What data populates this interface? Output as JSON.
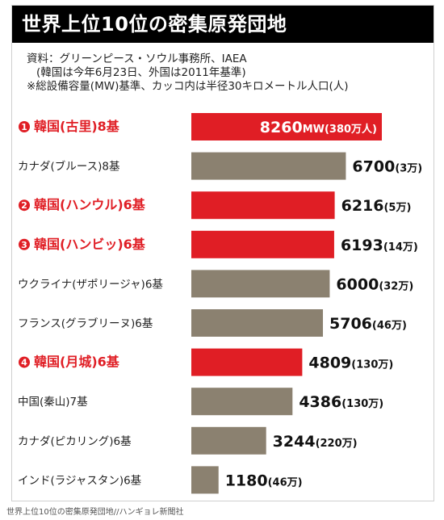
{
  "title": "世界上位10位の密集原発団地",
  "notes": [
    "資料：グリーンピース・ソウル事務所、IAEA",
    "(韓国は今年6月23日、外国は2011年基準)",
    "※総設備容量(MW)基準、カッコ内は半径30キロメートル人口(人)"
  ],
  "caption": "世界上位10位の密集原発団地//ハンギョレ新聞社",
  "colors": {
    "korea": "#e01e25",
    "other": "#8b8170",
    "korea_label": "#e01e25",
    "other_label": "#222222"
  },
  "chart_data": {
    "type": "bar",
    "orientation": "horizontal",
    "unit": "MW",
    "categories": [
      "韓国(古里)8基",
      "カナダ(ブルース)8基",
      "韓国(ハンウル)6基",
      "韓国(ハンビッ)6基",
      "ウクライナ(ザポリージャ)6基",
      "フランス(グラブリーヌ)6基",
      "韓国(月城)6基",
      "中国(秦山)7基",
      "カナダ(ピカリング)6基",
      "インド(ラジャスタン)6基"
    ],
    "ranks": [
      "1",
      "",
      "2",
      "3",
      "",
      "",
      "4",
      "",
      "",
      ""
    ],
    "values": [
      8260,
      6700,
      6216,
      6193,
      6000,
      5706,
      4809,
      4386,
      3244,
      1180
    ],
    "value_labels": [
      "8260",
      "6700",
      "6216",
      "6193",
      "6000",
      "5706",
      "4809",
      "4386",
      "3244",
      "1180"
    ],
    "populations": [
      "(380万人)",
      "(3万)",
      "(5万)",
      "(14万)",
      "(32万)",
      "(46万)",
      "(130万)",
      "(130万)",
      "(220万)",
      "(46万)"
    ],
    "korea": [
      true,
      false,
      true,
      true,
      false,
      false,
      true,
      false,
      false,
      false
    ]
  }
}
